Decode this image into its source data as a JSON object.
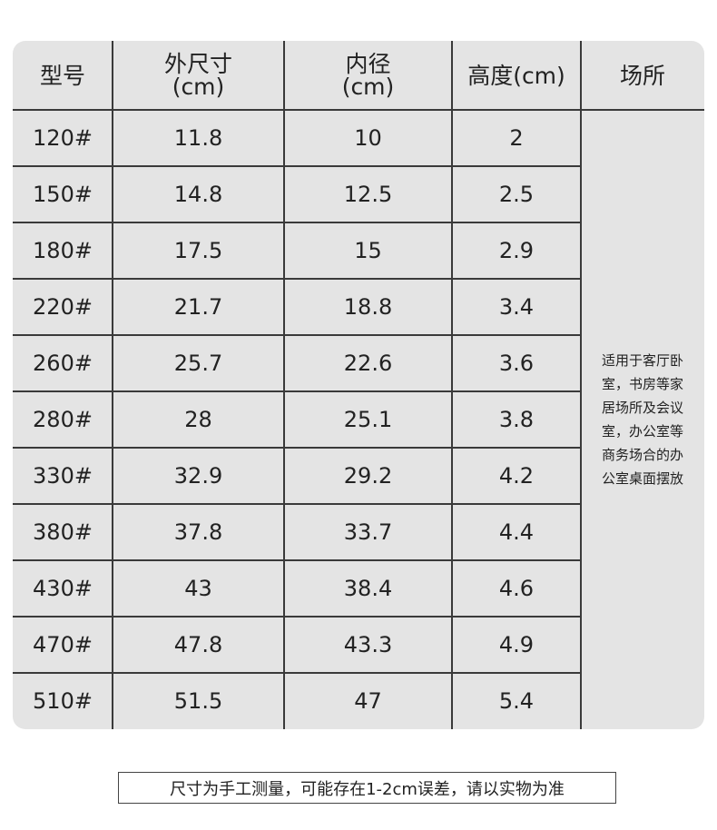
{
  "table": {
    "headers": [
      [
        "型号"
      ],
      [
        "外尺寸",
        "(cm)"
      ],
      [
        "内径",
        "(cm)"
      ],
      [
        "高度(cm)"
      ],
      [
        "场所"
      ]
    ],
    "rows": [
      [
        "120#",
        "11.8",
        "10",
        "2"
      ],
      [
        "150#",
        "14.8",
        "12.5",
        "2.5"
      ],
      [
        "180#",
        "17.5",
        "15",
        "2.9"
      ],
      [
        "220#",
        "21.7",
        "18.8",
        "3.4"
      ],
      [
        "260#",
        "25.7",
        "22.6",
        "3.6"
      ],
      [
        "280#",
        "28",
        "25.1",
        "3.8"
      ],
      [
        "330#",
        "32.9",
        "29.2",
        "4.2"
      ],
      [
        "380#",
        "37.8",
        "33.7",
        "4.4"
      ],
      [
        "430#",
        "43",
        "38.4",
        "4.6"
      ],
      [
        "470#",
        "47.8",
        "43.3",
        "4.9"
      ],
      [
        "510#",
        "51.5",
        "47",
        "5.4"
      ]
    ],
    "note": [
      "适用于客厅卧",
      "室，书房等家",
      "居场所及会议",
      "室，办公室等",
      "商务场合的办",
      "公室桌面摆放"
    ]
  },
  "footer": "尺寸为手工测量，可能存在1-2cm误差，请以实物为准"
}
